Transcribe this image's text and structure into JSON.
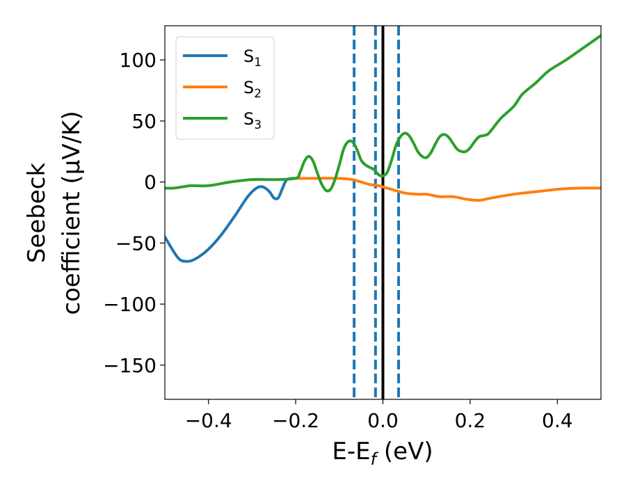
{
  "chart_data": {
    "type": "line",
    "title": "",
    "xlabel": {
      "main": "E-E",
      "sub": "f",
      "suffix": " (eV)"
    },
    "ylabel": {
      "line1": "Seebeck",
      "line2": "coefficient  (μV/K)"
    },
    "xlim": [
      -0.5,
      0.5
    ],
    "ylim": [
      -178,
      128
    ],
    "xticks": [
      -0.4,
      -0.2,
      0.0,
      0.2,
      0.4
    ],
    "xtick_labels": [
      "−0.4",
      "−0.2",
      "0.0",
      "0.2",
      "0.4"
    ],
    "yticks": [
      100,
      50,
      0,
      -50,
      -100,
      -150
    ],
    "ytick_labels": [
      "100",
      "50",
      "0",
      "−50",
      "−100",
      "−150"
    ],
    "grid": false,
    "legend_position": "top-left",
    "series": [
      {
        "name": "S1",
        "label_main": "S",
        "label_sub": "1",
        "color": "#1f77b4",
        "x": [
          -0.5,
          -0.47,
          -0.45,
          -0.43,
          -0.4,
          -0.37,
          -0.34,
          -0.31,
          -0.29,
          -0.275,
          -0.26,
          -0.25,
          -0.24,
          -0.23,
          -0.22,
          -0.2
        ],
        "y": [
          -45,
          -62,
          -65,
          -63,
          -55,
          -43,
          -28,
          -12,
          -5,
          -4,
          -8,
          -13,
          -13,
          -5,
          2,
          3
        ]
      },
      {
        "name": "S2",
        "label_main": "S",
        "label_sub": "2",
        "color": "#ff7f0e",
        "x": [
          -0.2,
          -0.15,
          -0.1,
          -0.07,
          -0.05,
          -0.03,
          -0.01,
          0.0,
          0.02,
          0.05,
          0.08,
          0.1,
          0.13,
          0.16,
          0.19,
          0.22,
          0.25,
          0.3,
          0.35,
          0.4,
          0.45,
          0.5
        ],
        "y": [
          3,
          3,
          3,
          2,
          0,
          -2,
          -3,
          -4,
          -6,
          -9,
          -10,
          -10,
          -12,
          -12,
          -14,
          -15,
          -13,
          -10,
          -8,
          -6,
          -5,
          -5
        ]
      },
      {
        "name": "S3",
        "label_main": "S",
        "label_sub": "3",
        "color": "#2ca02c",
        "x": [
          -0.5,
          -0.48,
          -0.46,
          -0.44,
          -0.4,
          -0.35,
          -0.3,
          -0.25,
          -0.2,
          -0.19,
          -0.18,
          -0.17,
          -0.16,
          -0.15,
          -0.14,
          -0.13,
          -0.12,
          -0.11,
          -0.1,
          -0.09,
          -0.08,
          -0.07,
          -0.06,
          -0.05,
          -0.04,
          -0.03,
          -0.02,
          -0.01,
          0.0,
          0.01,
          0.02,
          0.03,
          0.04,
          0.05,
          0.06,
          0.07,
          0.08,
          0.09,
          0.1,
          0.11,
          0.12,
          0.13,
          0.14,
          0.15,
          0.16,
          0.17,
          0.18,
          0.19,
          0.2,
          0.21,
          0.22,
          0.23,
          0.24,
          0.25,
          0.27,
          0.3,
          0.32,
          0.35,
          0.38,
          0.42,
          0.46,
          0.5
        ],
        "y": [
          -5,
          -5,
          -4,
          -3,
          -3,
          0,
          2,
          2,
          3,
          8,
          17,
          21,
          17,
          7,
          -2,
          -7,
          -6,
          2,
          14,
          27,
          33,
          33,
          27,
          18,
          14,
          12,
          10,
          6,
          5,
          8,
          18,
          30,
          37,
          40,
          38,
          32,
          25,
          21,
          20,
          24,
          31,
          37,
          39,
          37,
          32,
          27,
          25,
          25,
          28,
          33,
          37,
          38,
          39,
          43,
          52,
          62,
          72,
          81,
          91,
          100,
          110,
          120
        ]
      }
    ],
    "vlines": [
      {
        "x": -0.066,
        "style": "dashed",
        "color": "#1f77b4"
      },
      {
        "x": -0.017,
        "style": "dashed",
        "color": "#1f77b4"
      },
      {
        "x": 0.036,
        "style": "dashed",
        "color": "#1f77b4"
      },
      {
        "x": 0.0,
        "style": "solid",
        "color": "#000000"
      }
    ]
  }
}
